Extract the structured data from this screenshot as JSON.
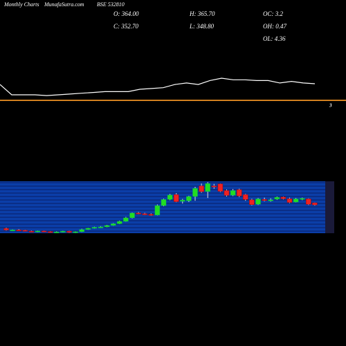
{
  "header": {
    "left": "Monthly Charts",
    "site": "MunafaSutra.com",
    "symbol": "BSE 532810",
    "open": "O: 364.00",
    "close": "C: 352.70",
    "high": "H: 365.70",
    "low": "L: 348.80",
    "oc": "OC: 3.2",
    "oh": "OH: 0.47",
    "ol": "OL: 4.36",
    "marker": "3"
  },
  "chart_data": [
    {
      "type": "line",
      "color": "#ffffff",
      "baseline_color": "#d2801f",
      "values": [
        20,
        7,
        7,
        7,
        6,
        7,
        8,
        9,
        10,
        11,
        11,
        11,
        14,
        15,
        16,
        20,
        22,
        20,
        25,
        28,
        26,
        26,
        25,
        25,
        22,
        24,
        22,
        21
      ],
      "ylim": [
        0,
        35
      ]
    },
    {
      "type": "candlestick",
      "up_color": "#22dd22",
      "down_color": "#ee2222",
      "background": "#0b3ea8",
      "grid": true,
      "ylim": [
        200,
        480
      ],
      "open": [
        226,
        216,
        218,
        216,
        211,
        208,
        212,
        209,
        205,
        207,
        211,
        204,
        208,
        220,
        227,
        232,
        234,
        242,
        251,
        264,
        283,
        309,
        305,
        302,
        298,
        349,
        382,
        408,
        372,
        375,
        398,
        455,
        425,
        455,
        466,
        430,
        405,
        435,
        408,
        380,
        356,
        382,
        378,
        384,
        395,
        386,
        368,
        382,
        385,
        364.0
      ],
      "high": [
        230,
        220,
        222,
        218,
        214,
        214,
        214,
        211,
        210,
        213,
        213,
        210,
        224,
        229,
        235,
        238,
        245,
        254,
        268,
        288,
        312,
        314,
        310,
        307,
        355,
        386,
        412,
        416,
        385,
        402,
        450,
        468,
        475,
        466,
        468,
        436,
        438,
        440,
        412,
        386,
        390,
        392,
        388,
        398,
        398,
        392,
        390,
        392,
        388,
        365.7
      ],
      "low": [
        214,
        212,
        214,
        210,
        206,
        205,
        207,
        203,
        202,
        204,
        202,
        201,
        206,
        218,
        225,
        229,
        232,
        240,
        249,
        262,
        280,
        302,
        298,
        294,
        296,
        345,
        378,
        367,
        360,
        368,
        375,
        418,
        390,
        440,
        422,
        398,
        400,
        395,
        375,
        350,
        352,
        372,
        370,
        380,
        382,
        362,
        366,
        378,
        352,
        348.8
      ],
      "close": [
        217,
        218,
        216,
        211,
        208,
        212,
        209,
        205,
        207,
        211,
        204,
        208,
        220,
        227,
        232,
        234,
        242,
        251,
        264,
        283,
        309,
        305,
        302,
        298,
        349,
        382,
        406,
        370,
        379,
        398,
        442,
        424,
        468,
        449,
        426,
        404,
        430,
        401,
        382,
        354,
        385,
        378,
        380,
        394,
        386,
        366,
        385,
        388,
        356,
        352.7
      ]
    }
  ]
}
